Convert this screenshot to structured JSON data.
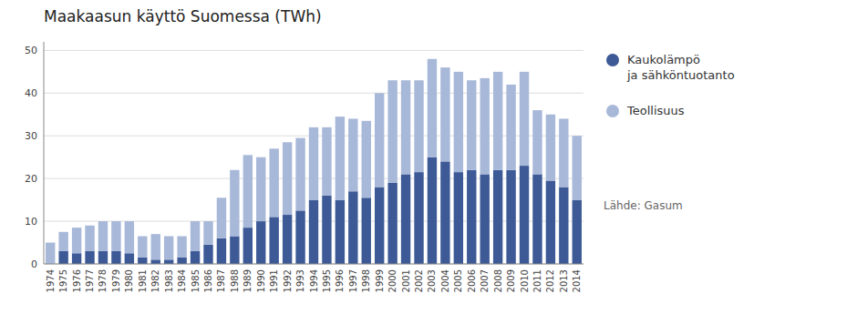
{
  "chart_data": {
    "type": "bar",
    "title": "Maakaasun käyttö Suomessa (TWh)",
    "categories": [
      "1974",
      "1975",
      "1976",
      "1977",
      "1978",
      "1979",
      "1980",
      "1981",
      "1982",
      "1983",
      "1984",
      "1985",
      "1986",
      "1987",
      "1988",
      "1989",
      "1990",
      "1991",
      "1992",
      "1993",
      "1994",
      "1995",
      "1996",
      "1997",
      "1998",
      "1999",
      "2000",
      "2001",
      "2002",
      "2003",
      "2004",
      "2005",
      "2006",
      "2007",
      "2008",
      "2009",
      "2010",
      "2011",
      "2012",
      "2013",
      "2014"
    ],
    "series": [
      {
        "name": "Kaukolämpö\nja sähköntuotanto",
        "color": "#3d5a96",
        "values": [
          0,
          3,
          2.5,
          3,
          3,
          3,
          2.5,
          1.5,
          1,
          1,
          1.5,
          3,
          4.5,
          6,
          6.5,
          8.5,
          10,
          11,
          11.5,
          12.5,
          15,
          16,
          15,
          17,
          15.5,
          18,
          19,
          21,
          21.5,
          25,
          24,
          21.5,
          22,
          21,
          22,
          22,
          23,
          21,
          19.5,
          18,
          15
        ]
      },
      {
        "name": "Teollisuus",
        "color": "#a8b8d8",
        "values": [
          5,
          4.5,
          6,
          6,
          7,
          7,
          7.5,
          5,
          6,
          5.5,
          5,
          7,
          5.5,
          9.5,
          15.5,
          17,
          15,
          16,
          17,
          17,
          17,
          16,
          19.5,
          17,
          18,
          22,
          24,
          22,
          21.5,
          23,
          22,
          23.5,
          21,
          22.5,
          23,
          20,
          22,
          15,
          15.5,
          16,
          15
        ]
      }
    ],
    "stacked": true,
    "ylim": [
      0,
      52
    ],
    "yticks": [
      0,
      10,
      20,
      30,
      40,
      50
    ],
    "grid": true,
    "legend": "right",
    "annotations": [
      "Lähde: Gasum"
    ]
  }
}
